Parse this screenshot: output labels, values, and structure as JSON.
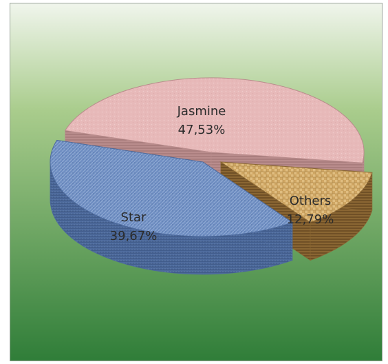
{
  "chart_data": {
    "type": "pie",
    "style": "3d-exploded",
    "title": "",
    "legend": "none",
    "slices": [
      {
        "label": "Jasmine",
        "value_label": "47,53%",
        "value": 47.53,
        "color": "#e7b9b9",
        "side_color": "#b98c8c",
        "pattern": "cloth"
      },
      {
        "label": "Others",
        "value_label": "12,79%",
        "value": 12.79,
        "color": "#cfa663",
        "side_color": "#8a6633",
        "pattern": "weave"
      },
      {
        "label": "Star",
        "value_label": "39,67%",
        "value": 39.67,
        "color": "#6f8ec2",
        "side_color": "#4d6a9c",
        "pattern": "denim"
      }
    ]
  },
  "colors": {
    "background_top": "#f0f5ec",
    "background_mid": "#a9cc8c",
    "background_bottom": "#2f7d38"
  }
}
